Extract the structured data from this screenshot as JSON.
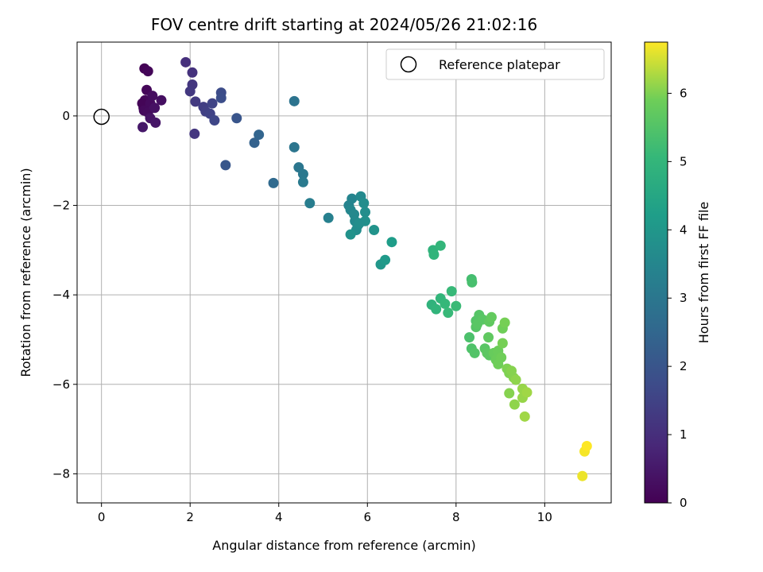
{
  "chart_data": {
    "type": "scatter",
    "title": "FOV centre drift starting at 2024/05/26 21:02:16",
    "xlabel": "Angular distance from reference (arcmin)",
    "ylabel": "Rotation from reference (arcmin)",
    "colorbar_label": "Hours from first FF file",
    "xlim": [
      -0.55,
      11.5
    ],
    "ylim": [
      -8.65,
      1.65
    ],
    "xticks": [
      0,
      2,
      4,
      6,
      8,
      10
    ],
    "yticks": [
      -8,
      -6,
      -4,
      -2,
      0
    ],
    "colorbar_ticks": [
      0,
      1,
      2,
      3,
      4,
      5,
      6
    ],
    "colorbar_range": [
      0,
      6.75
    ],
    "colormap": "viridis",
    "grid": true,
    "legend": {
      "placement": "top-right",
      "entries": [
        "Reference platepar"
      ]
    },
    "reference_point": {
      "x": 0,
      "y": 0
    },
    "points": [
      [
        0.97,
        1.06,
        0.05
      ],
      [
        1.05,
        1.0,
        0.1
      ],
      [
        1.02,
        0.58,
        0.12
      ],
      [
        0.98,
        0.35,
        0.15
      ],
      [
        0.95,
        0.18,
        0.1
      ],
      [
        0.92,
        0.28,
        0.08
      ],
      [
        1.1,
        0.28,
        0.2
      ],
      [
        1.15,
        0.45,
        0.25
      ],
      [
        1.35,
        0.35,
        0.3
      ],
      [
        0.96,
        0.12,
        0.18
      ],
      [
        1.05,
        0.08,
        0.22
      ],
      [
        1.2,
        0.18,
        0.35
      ],
      [
        1.1,
        -0.05,
        0.4
      ],
      [
        1.22,
        -0.15,
        0.45
      ],
      [
        0.93,
        -0.25,
        0.5
      ],
      [
        1.9,
        1.2,
        1.05
      ],
      [
        2.05,
        0.97,
        1.1
      ],
      [
        2.05,
        0.7,
        1.2
      ],
      [
        2.0,
        0.55,
        1.25
      ],
      [
        2.12,
        0.32,
        1.3
      ],
      [
        2.3,
        0.2,
        1.4
      ],
      [
        2.35,
        0.1,
        1.45
      ],
      [
        2.45,
        0.05,
        1.5
      ],
      [
        2.5,
        0.28,
        1.55
      ],
      [
        2.55,
        -0.1,
        1.6
      ],
      [
        2.1,
        -0.4,
        1.2
      ],
      [
        2.7,
        0.52,
        1.75
      ],
      [
        2.7,
        0.4,
        1.8
      ],
      [
        3.05,
        -0.05,
        2.0
      ],
      [
        2.8,
        -1.1,
        2.05
      ],
      [
        3.45,
        -0.6,
        2.35
      ],
      [
        3.55,
        -0.42,
        2.45
      ],
      [
        3.88,
        -1.5,
        2.6
      ],
      [
        4.35,
        0.33,
        2.9
      ],
      [
        4.35,
        -0.7,
        2.95
      ],
      [
        4.45,
        -1.15,
        3.0
      ],
      [
        4.55,
        -1.3,
        3.05
      ],
      [
        4.55,
        -1.48,
        3.1
      ],
      [
        4.7,
        -1.95,
        3.2
      ],
      [
        5.12,
        -2.28,
        3.3
      ],
      [
        5.58,
        -2.0,
        3.4
      ],
      [
        5.65,
        -1.85,
        3.45
      ],
      [
        5.62,
        -2.1,
        3.5
      ],
      [
        5.7,
        -2.2,
        3.55
      ],
      [
        5.72,
        -2.35,
        3.6
      ],
      [
        5.78,
        -2.45,
        3.65
      ],
      [
        5.75,
        -2.55,
        3.7
      ],
      [
        5.85,
        -1.8,
        3.6
      ],
      [
        5.92,
        -1.95,
        3.7
      ],
      [
        5.95,
        -2.15,
        3.75
      ],
      [
        5.95,
        -2.35,
        3.8
      ],
      [
        5.82,
        -2.4,
        3.75
      ],
      [
        5.62,
        -2.65,
        3.85
      ],
      [
        6.15,
        -2.55,
        3.9
      ],
      [
        6.3,
        -3.32,
        4.0
      ],
      [
        6.4,
        -3.22,
        4.1
      ],
      [
        6.55,
        -2.82,
        4.2
      ],
      [
        7.48,
        -3.0,
        4.9
      ],
      [
        7.5,
        -3.1,
        4.95
      ],
      [
        7.65,
        -2.9,
        5.0
      ],
      [
        7.45,
        -4.22,
        4.9
      ],
      [
        7.55,
        -4.32,
        4.95
      ],
      [
        7.65,
        -4.08,
        5.0
      ],
      [
        7.75,
        -4.2,
        5.05
      ],
      [
        7.82,
        -4.4,
        5.1
      ],
      [
        7.9,
        -3.92,
        5.1
      ],
      [
        8.0,
        -4.25,
        5.15
      ],
      [
        8.35,
        -3.65,
        5.3
      ],
      [
        8.36,
        -3.72,
        5.35
      ],
      [
        8.3,
        -4.95,
        5.4
      ],
      [
        8.35,
        -5.2,
        5.45
      ],
      [
        8.42,
        -5.3,
        5.5
      ],
      [
        8.45,
        -4.58,
        5.5
      ],
      [
        8.45,
        -4.72,
        5.55
      ],
      [
        8.48,
        -4.65,
        5.6
      ],
      [
        8.52,
        -4.45,
        5.55
      ],
      [
        8.6,
        -4.55,
        5.6
      ],
      [
        8.65,
        -5.2,
        5.6
      ],
      [
        8.7,
        -5.3,
        5.65
      ],
      [
        8.75,
        -5.35,
        5.65
      ],
      [
        8.73,
        -4.95,
        5.7
      ],
      [
        8.75,
        -4.6,
        5.7
      ],
      [
        8.8,
        -4.5,
        5.75
      ],
      [
        8.85,
        -5.3,
        5.8
      ],
      [
        8.9,
        -5.45,
        5.85
      ],
      [
        8.95,
        -5.25,
        5.85
      ],
      [
        8.95,
        -5.55,
        5.9
      ],
      [
        9.02,
        -5.4,
        5.9
      ],
      [
        9.05,
        -4.75,
        5.9
      ],
      [
        9.1,
        -4.62,
        5.95
      ],
      [
        9.05,
        -5.08,
        5.95
      ],
      [
        9.15,
        -5.65,
        6.0
      ],
      [
        9.2,
        -5.75,
        6.0
      ],
      [
        9.25,
        -5.7,
        6.05
      ],
      [
        9.3,
        -5.85,
        6.05
      ],
      [
        9.35,
        -5.9,
        6.1
      ],
      [
        9.2,
        -6.2,
        6.05
      ],
      [
        9.32,
        -6.45,
        6.1
      ],
      [
        9.5,
        -6.1,
        6.15
      ],
      [
        9.5,
        -6.3,
        6.15
      ],
      [
        9.6,
        -6.18,
        6.2
      ],
      [
        9.55,
        -6.72,
        6.2
      ],
      [
        10.85,
        -8.05,
        6.65
      ],
      [
        10.9,
        -7.5,
        6.7
      ],
      [
        10.95,
        -7.38,
        6.75
      ]
    ]
  }
}
